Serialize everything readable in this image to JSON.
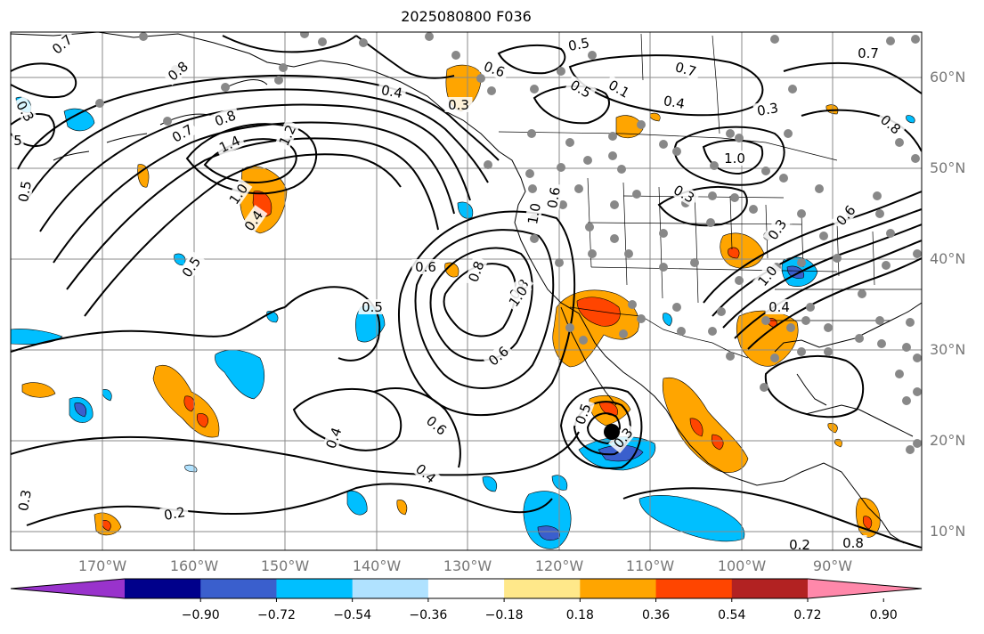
{
  "title": "2025080800 F036",
  "lat_labels": [
    "60°N",
    "50°N",
    "40°N",
    "30°N",
    "20°N",
    "10°N"
  ],
  "lon_labels": [
    "170°W",
    "160°W",
    "150°W",
    "140°W",
    "130°W",
    "120°W",
    "110°W",
    "100°W",
    "90°W"
  ],
  "colorbar": {
    "colors": [
      "#9933cc",
      "#00008b",
      "#3a5fcd",
      "#00bfff",
      "#b0e2ff",
      "#ffffff",
      "#ffe88a",
      "#ffa500",
      "#ff4500",
      "#b22222",
      "#ff88aa"
    ],
    "tick_labels": [
      "−0.90",
      "−0.72",
      "−0.54",
      "−0.36",
      "−0.18",
      "0.18",
      "0.36",
      "0.54",
      "0.72",
      "0.90"
    ]
  },
  "contour_labels": [
    "0.8",
    "0.7",
    "0.5",
    "0.6",
    "0.4",
    "0.3",
    "0.7",
    "0.5",
    "0.1",
    "0.4",
    "0.3",
    "0.7",
    "0.8",
    "1.4",
    "1.2",
    "0.8",
    "0.7",
    "5",
    "0.5",
    "1.0",
    "0.4",
    "0.5",
    "1.0",
    "1.0",
    "0.3",
    "0.8",
    "0.6",
    "0.8",
    "1.0",
    "0.3",
    "0.6",
    "0.6",
    "1.0",
    "0.4",
    "0.5",
    "0.6",
    "0.4",
    "0.5",
    "0.3",
    "0.4",
    "0.3",
    "0.2",
    "0.3",
    "0.2",
    "0.8",
    "0.6"
  ]
}
